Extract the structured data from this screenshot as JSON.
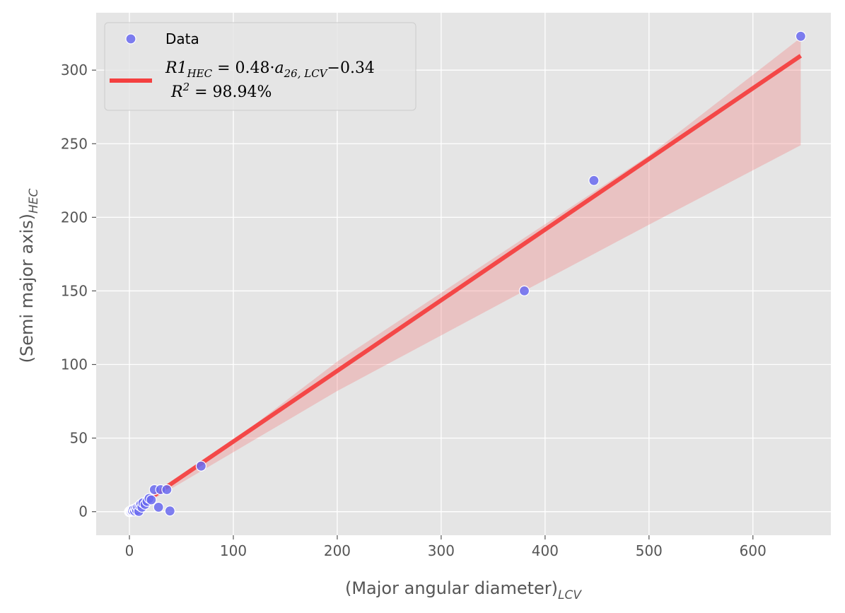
{
  "chart_data": {
    "type": "scatter",
    "title": "",
    "xlabel": "(Major angular diameter)",
    "xlabel_sub": "LCV",
    "ylabel": "(Semi major axis)",
    "ylabel_sub": "HEC",
    "xlim": [
      -32,
      675
    ],
    "ylim": [
      -16,
      339
    ],
    "xticks": [
      0,
      100,
      200,
      300,
      400,
      500,
      600
    ],
    "yticks": [
      0,
      50,
      100,
      150,
      200,
      250,
      300
    ],
    "grid": true,
    "legend_placement": "top-left",
    "series": [
      {
        "name": "Data",
        "kind": "scatter",
        "color": "#6a6af0",
        "points": [
          [
            0,
            0
          ],
          [
            0.5,
            0.3
          ],
          [
            1,
            0.5
          ],
          [
            1.5,
            0.2
          ],
          [
            2,
            1
          ],
          [
            2.5,
            0.4
          ],
          [
            3,
            0.8
          ],
          [
            4,
            1.5
          ],
          [
            5,
            0.5
          ],
          [
            6,
            2
          ],
          [
            7,
            1
          ],
          [
            8,
            3
          ],
          [
            9,
            0.2
          ],
          [
            10,
            4
          ],
          [
            11,
            5
          ],
          [
            12,
            3
          ],
          [
            13,
            6
          ],
          [
            15,
            5
          ],
          [
            17,
            7
          ],
          [
            19,
            9
          ],
          [
            21,
            8
          ],
          [
            24,
            15
          ],
          [
            28,
            3
          ],
          [
            30,
            15
          ],
          [
            36,
            15
          ],
          [
            39,
            0.5
          ],
          [
            69,
            31
          ],
          [
            380,
            150
          ],
          [
            447,
            225
          ],
          [
            646,
            323
          ]
        ]
      },
      {
        "name": "R1_HEC = 0.48·a_26,LCV − 0.34, R^2 = 98.94%",
        "kind": "line",
        "color": "#f44040",
        "slope": 0.48,
        "intercept": -0.34,
        "x_range": [
          0,
          646
        ],
        "confidence_band": {
          "color": "#f08080",
          "x": [
            0,
            69,
            200,
            380,
            500,
            646
          ],
          "lower": [
            -1,
            27.5,
            82,
            150,
            195,
            249
          ],
          "upper": [
            0.5,
            31.5,
            102,
            186,
            242,
            322
          ]
        }
      }
    ],
    "legend": {
      "data_label": "Data",
      "fit_line1_parts": [
        "R1",
        "HEC",
        " = 0.48·",
        "a",
        "26, LCV",
        "−0.34"
      ],
      "fit_line2_parts": [
        "R",
        "2",
        " = 98.94%"
      ]
    }
  }
}
